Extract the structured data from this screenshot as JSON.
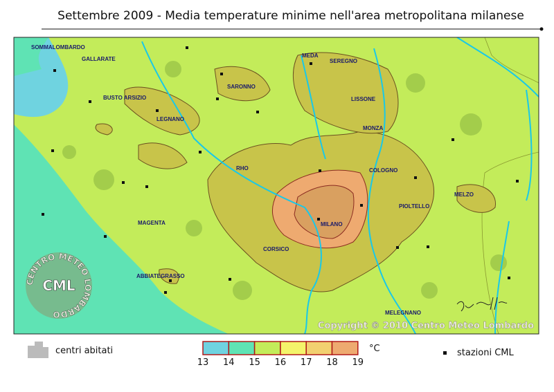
{
  "title": "Settembre 2009 - Media temperature minime nell'area metropolitana milanese",
  "towns": [
    "SOMMALOMBARDO",
    "GALLARATE",
    "BUSTO ARSIZIO",
    "LEGNANO",
    "SARONNO",
    "MEDA",
    "SEREGNO",
    "LISSONE",
    "MONZA",
    "RHO",
    "COLOGNO",
    "MELZO",
    "PIOLTELLO",
    "MAGENTA",
    "MILANO",
    "CORSICO",
    "ABBIATEGRASSO",
    "MELEGNANO"
  ],
  "copyright": "Copyright © 2010 Centro Meteo Lombardo",
  "logo": {
    "ring": "CENTRO METEO LOMBARDO",
    "center": "CML"
  },
  "legend": {
    "settlements": "centri abitati",
    "unit": "°C",
    "stations": "stazioni CML",
    "scale": {
      "ticks": [
        13,
        14,
        15,
        16,
        17,
        18,
        19
      ],
      "colors": [
        "#6fd3e0",
        "#5fe3b4",
        "#c3ec5a",
        "#f4f46a",
        "#f2d070",
        "#eeaa70"
      ]
    }
  }
}
